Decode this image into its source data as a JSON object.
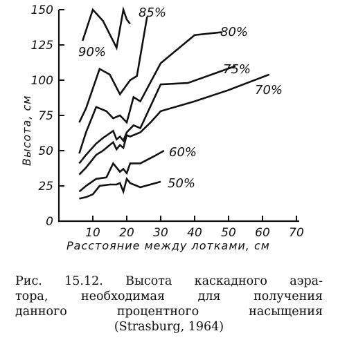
{
  "chart_data": {
    "type": "line",
    "xlabel": "Расстояние между лотками, см",
    "ylabel": "Высота, см",
    "xlim": [
      0,
      70
    ],
    "ylim": [
      0,
      150
    ],
    "xticks": [
      10,
      20,
      30,
      40,
      50,
      60,
      70
    ],
    "xtick_labels": [
      "10",
      "20",
      "30",
      "40",
      "50",
      "60",
      "70"
    ],
    "yticks": [
      0,
      25,
      50,
      75,
      100,
      125,
      150
    ],
    "ytick_labels": [
      "0",
      "25",
      "50",
      "75",
      "100",
      "125",
      "150"
    ],
    "grid": false,
    "series": [
      {
        "name": "90%",
        "x": [
          7,
          10,
          13,
          17,
          19,
          20,
          21
        ],
        "y": [
          128,
          150,
          142,
          123,
          150,
          143,
          140
        ]
      },
      {
        "name": "85%",
        "x": [
          6,
          8,
          12,
          15,
          18,
          21,
          23,
          26
        ],
        "y": [
          70,
          80,
          108,
          104,
          90,
          100,
          103,
          145
        ]
      },
      {
        "name": "80%",
        "x": [
          6,
          8,
          11,
          14,
          16,
          18,
          20,
          22,
          24,
          30,
          40,
          48
        ],
        "y": [
          48,
          63,
          81,
          78,
          73,
          75,
          70,
          88,
          85,
          112,
          132,
          134
        ]
      },
      {
        "name": "75%",
        "x": [
          6,
          8,
          11,
          13,
          16,
          17,
          18,
          19,
          20,
          22,
          24,
          30,
          38,
          52
        ],
        "y": [
          41,
          47,
          55,
          59,
          64,
          58,
          60,
          57,
          63,
          68,
          66,
          97,
          98,
          110
        ]
      },
      {
        "name": "70%",
        "x": [
          6,
          8,
          11,
          13,
          16,
          17,
          18,
          19,
          20,
          21,
          24,
          27,
          30,
          40,
          50,
          62
        ],
        "y": [
          33,
          38,
          47,
          50,
          56,
          51,
          54,
          52,
          61,
          60,
          63,
          70,
          78,
          85,
          93,
          104
        ]
      },
      {
        "name": "60%",
        "x": [
          6,
          8,
          11,
          14,
          16,
          18,
          19,
          20,
          21,
          24,
          28,
          31
        ],
        "y": [
          21,
          25,
          30,
          31,
          41,
          35,
          37,
          34,
          41,
          41,
          46,
          50
        ]
      },
      {
        "name": "50%",
        "x": [
          6,
          8,
          10,
          12,
          15,
          17,
          18,
          19,
          20,
          21,
          24,
          30
        ],
        "y": [
          16,
          17,
          19,
          25,
          26,
          26,
          27,
          21,
          30,
          27,
          24,
          28
        ]
      }
    ],
    "annotations": [
      "90%",
      "85%",
      "80%",
      "75%",
      "70%",
      "60%",
      "50%"
    ]
  },
  "caption": {
    "lines": [
      "Рис. 15.12. Высота каскадного аэра-",
      "тора, необходимая для получения",
      "данного процентного насыщения",
      "(Strasburg, 1964)"
    ]
  }
}
